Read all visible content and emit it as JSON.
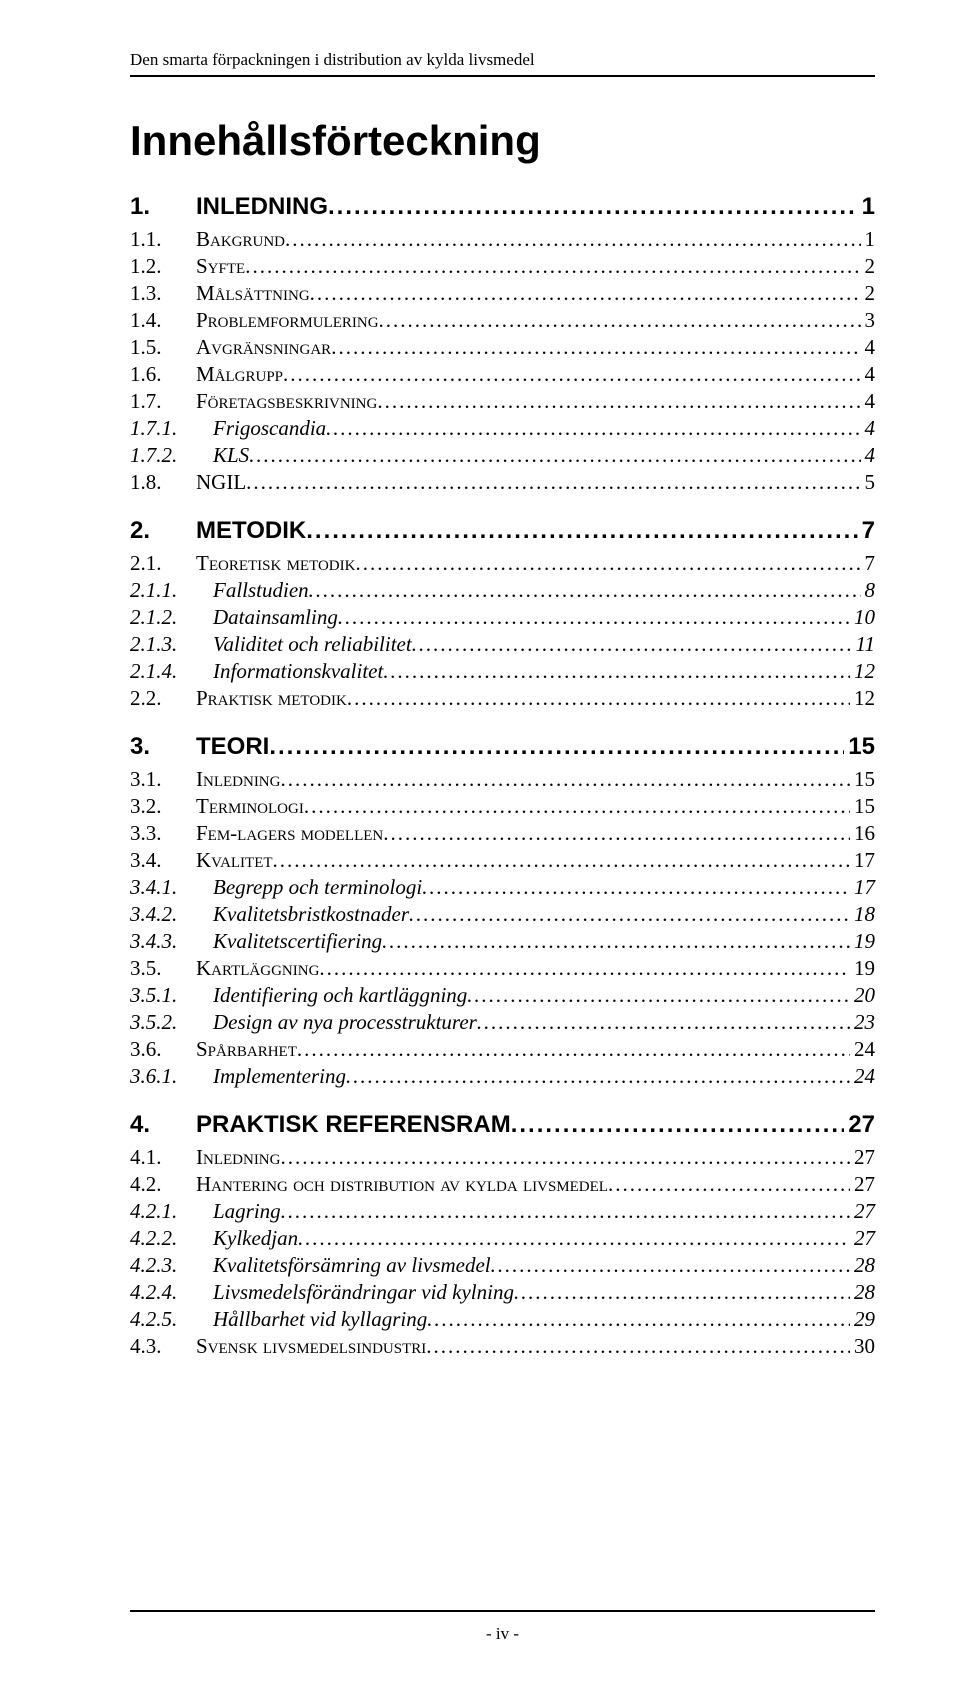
{
  "running_header": "Den smarta förpackningen i distribution av kylda livsmedel",
  "title": "Innehållsförteckning",
  "footer": "- iv -",
  "dot_fill": "......................................................................................................................................................................................................",
  "toc": [
    {
      "level": 1,
      "num": "1.",
      "label": "INLEDNING",
      "page": "1"
    },
    {
      "level": 2,
      "num": "1.1.",
      "label": "Bakgrund",
      "page": "1"
    },
    {
      "level": 2,
      "num": "1.2.",
      "label": "Syfte",
      "page": "2"
    },
    {
      "level": 2,
      "num": "1.3.",
      "label": "Målsättning",
      "page": "2"
    },
    {
      "level": 2,
      "num": "1.4.",
      "label": "Problemformulering",
      "page": "3"
    },
    {
      "level": 2,
      "num": "1.5.",
      "label": "Avgränsningar",
      "page": "4"
    },
    {
      "level": 2,
      "num": "1.6.",
      "label": "Målgrupp",
      "page": "4"
    },
    {
      "level": 2,
      "num": "1.7.",
      "label": "Företagsbeskrivning",
      "page": "4"
    },
    {
      "level": 3,
      "num": "1.7.1.",
      "label": "Frigoscandia",
      "page": "4"
    },
    {
      "level": 3,
      "num": "1.7.2.",
      "label": "KLS",
      "page": "4"
    },
    {
      "level": 2,
      "num": "1.8.",
      "label": "NGIL",
      "page": "5"
    },
    {
      "level": 1,
      "num": "2.",
      "label": "METODIK",
      "page": "7"
    },
    {
      "level": 2,
      "num": "2.1.",
      "label": "Teoretisk metodik",
      "page": "7"
    },
    {
      "level": 3,
      "num": "2.1.1.",
      "label": "Fallstudien",
      "page": "8"
    },
    {
      "level": 3,
      "num": "2.1.2.",
      "label": "Datainsamling",
      "page": "10"
    },
    {
      "level": 3,
      "num": "2.1.3.",
      "label": "Validitet och reliabilitet",
      "page": "11"
    },
    {
      "level": 3,
      "num": "2.1.4.",
      "label": "Informationskvalitet",
      "page": "12"
    },
    {
      "level": 2,
      "num": "2.2.",
      "label": "Praktisk metodik",
      "page": "12"
    },
    {
      "level": 1,
      "num": "3.",
      "label": "TEORI",
      "page": "15"
    },
    {
      "level": 2,
      "num": "3.1.",
      "label": "Inledning",
      "page": "15"
    },
    {
      "level": 2,
      "num": "3.2.",
      "label": "Terminologi",
      "page": "15"
    },
    {
      "level": 2,
      "num": "3.3.",
      "label": "Fem-lagers modellen",
      "page": "16"
    },
    {
      "level": 2,
      "num": "3.4.",
      "label": "Kvalitet",
      "page": "17"
    },
    {
      "level": 3,
      "num": "3.4.1.",
      "label": "Begrepp och terminologi",
      "page": "17"
    },
    {
      "level": 3,
      "num": "3.4.2.",
      "label": "Kvalitetsbristkostnader",
      "page": "18"
    },
    {
      "level": 3,
      "num": "3.4.3.",
      "label": "Kvalitetscertifiering",
      "page": "19"
    },
    {
      "level": 2,
      "num": "3.5.",
      "label": "Kartläggning",
      "page": "19"
    },
    {
      "level": 3,
      "num": "3.5.1.",
      "label": "Identifiering och kartläggning",
      "page": "20"
    },
    {
      "level": 3,
      "num": "3.5.2.",
      "label": "Design av nya processtrukturer",
      "page": "23"
    },
    {
      "level": 2,
      "num": "3.6.",
      "label": "Spårbarhet",
      "page": "24"
    },
    {
      "level": 3,
      "num": "3.6.1.",
      "label": "Implementering",
      "page": "24"
    },
    {
      "level": 1,
      "num": "4.",
      "label": "PRAKTISK REFERENSRAM",
      "page": "27"
    },
    {
      "level": 2,
      "num": "4.1.",
      "label": "Inledning",
      "page": "27"
    },
    {
      "level": 2,
      "num": "4.2.",
      "label": "Hantering och distribution av kylda livsmedel",
      "page": "27"
    },
    {
      "level": 3,
      "num": "4.2.1.",
      "label": "Lagring",
      "page": "27"
    },
    {
      "level": 3,
      "num": "4.2.2.",
      "label": "Kylkedjan",
      "page": "27"
    },
    {
      "level": 3,
      "num": "4.2.3.",
      "label": "Kvalitetsförsämring av livsmedel",
      "page": "28"
    },
    {
      "level": 3,
      "num": "4.2.4.",
      "label": "Livsmedelsförändringar vid kylning",
      "page": "28"
    },
    {
      "level": 3,
      "num": "4.2.5.",
      "label": "Hållbarhet vid kyllagring",
      "page": "29"
    },
    {
      "level": 2,
      "num": "4.3.",
      "label": "Svensk livsmedelsindustri",
      "page": "30"
    }
  ]
}
